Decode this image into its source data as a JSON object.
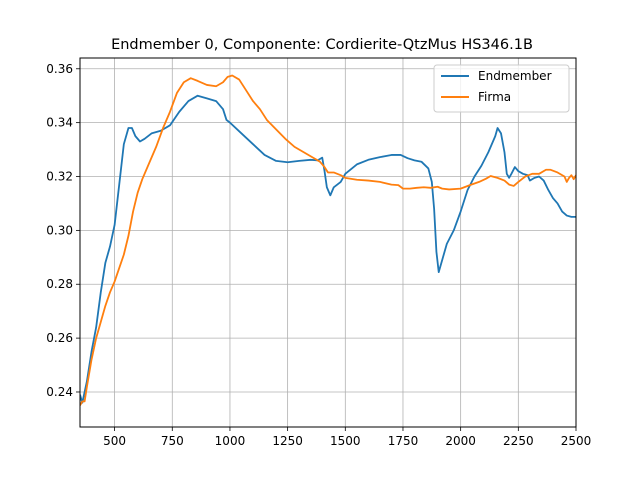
{
  "chart_data": {
    "type": "line",
    "title": "Endmember 0, Componente: Cordierite-QtzMus HS346.1B",
    "xlabel": "",
    "ylabel": "",
    "xlim": [
      350,
      2500
    ],
    "ylim": [
      0.227,
      0.364
    ],
    "grid": true,
    "legend_position": "top-right",
    "x_ticks": [
      500,
      750,
      1000,
      1250,
      1500,
      1750,
      2000,
      2250,
      2500
    ],
    "x_tick_labels": [
      "500",
      "750",
      "1000",
      "1250",
      "1500",
      "1750",
      "2000",
      "2250",
      "2500"
    ],
    "y_ticks": [
      0.24,
      0.26,
      0.28,
      0.3,
      0.32,
      0.34,
      0.36
    ],
    "y_tick_labels": [
      "0.24",
      "0.26",
      "0.28",
      "0.30",
      "0.32",
      "0.34",
      "0.36"
    ],
    "series": [
      {
        "name": "Endmember",
        "color": "#1f77b4",
        "points": [
          [
            350,
            0.239
          ],
          [
            360,
            0.236
          ],
          [
            380,
            0.244
          ],
          [
            400,
            0.255
          ],
          [
            420,
            0.264
          ],
          [
            440,
            0.277
          ],
          [
            460,
            0.288
          ],
          [
            480,
            0.294
          ],
          [
            500,
            0.302
          ],
          [
            520,
            0.317
          ],
          [
            540,
            0.332
          ],
          [
            560,
            0.338
          ],
          [
            575,
            0.338
          ],
          [
            590,
            0.335
          ],
          [
            610,
            0.333
          ],
          [
            630,
            0.334
          ],
          [
            660,
            0.336
          ],
          [
            700,
            0.337
          ],
          [
            740,
            0.339
          ],
          [
            780,
            0.344
          ],
          [
            820,
            0.348
          ],
          [
            860,
            0.35
          ],
          [
            900,
            0.349
          ],
          [
            940,
            0.348
          ],
          [
            970,
            0.345
          ],
          [
            985,
            0.341
          ],
          [
            1000,
            0.34
          ],
          [
            1050,
            0.336
          ],
          [
            1100,
            0.332
          ],
          [
            1150,
            0.328
          ],
          [
            1200,
            0.3258
          ],
          [
            1250,
            0.3253
          ],
          [
            1300,
            0.3258
          ],
          [
            1350,
            0.3262
          ],
          [
            1380,
            0.326
          ],
          [
            1400,
            0.327
          ],
          [
            1410,
            0.322
          ],
          [
            1420,
            0.316
          ],
          [
            1435,
            0.313
          ],
          [
            1450,
            0.316
          ],
          [
            1480,
            0.318
          ],
          [
            1500,
            0.321
          ],
          [
            1550,
            0.3245
          ],
          [
            1600,
            0.3262
          ],
          [
            1650,
            0.3272
          ],
          [
            1700,
            0.328
          ],
          [
            1740,
            0.328
          ],
          [
            1770,
            0.3268
          ],
          [
            1800,
            0.326
          ],
          [
            1830,
            0.3255
          ],
          [
            1860,
            0.323
          ],
          [
            1875,
            0.318
          ],
          [
            1885,
            0.308
          ],
          [
            1895,
            0.292
          ],
          [
            1905,
            0.2845
          ],
          [
            1920,
            0.289
          ],
          [
            1940,
            0.295
          ],
          [
            1970,
            0.3
          ],
          [
            2000,
            0.307
          ],
          [
            2030,
            0.315
          ],
          [
            2060,
            0.32
          ],
          [
            2090,
            0.324
          ],
          [
            2120,
            0.329
          ],
          [
            2150,
            0.335
          ],
          [
            2160,
            0.338
          ],
          [
            2175,
            0.336
          ],
          [
            2190,
            0.329
          ],
          [
            2200,
            0.321
          ],
          [
            2210,
            0.3195
          ],
          [
            2220,
            0.321
          ],
          [
            2235,
            0.3235
          ],
          [
            2250,
            0.322
          ],
          [
            2270,
            0.321
          ],
          [
            2290,
            0.3205
          ],
          [
            2300,
            0.3185
          ],
          [
            2320,
            0.3195
          ],
          [
            2340,
            0.32
          ],
          [
            2360,
            0.3185
          ],
          [
            2380,
            0.315
          ],
          [
            2400,
            0.312
          ],
          [
            2420,
            0.31
          ],
          [
            2440,
            0.307
          ],
          [
            2460,
            0.3055
          ],
          [
            2480,
            0.305
          ],
          [
            2500,
            0.305
          ]
        ]
      },
      {
        "name": "Firma",
        "color": "#ff7f0e",
        "points": [
          [
            350,
            0.235
          ],
          [
            360,
            0.2365
          ],
          [
            370,
            0.2365
          ],
          [
            380,
            0.242
          ],
          [
            400,
            0.252
          ],
          [
            420,
            0.26
          ],
          [
            440,
            0.266
          ],
          [
            460,
            0.272
          ],
          [
            480,
            0.277
          ],
          [
            500,
            0.281
          ],
          [
            520,
            0.286
          ],
          [
            540,
            0.291
          ],
          [
            560,
            0.298
          ],
          [
            580,
            0.307
          ],
          [
            600,
            0.314
          ],
          [
            620,
            0.319
          ],
          [
            650,
            0.325
          ],
          [
            680,
            0.331
          ],
          [
            710,
            0.338
          ],
          [
            740,
            0.344
          ],
          [
            770,
            0.351
          ],
          [
            800,
            0.355
          ],
          [
            830,
            0.3565
          ],
          [
            860,
            0.3555
          ],
          [
            900,
            0.354
          ],
          [
            940,
            0.3535
          ],
          [
            970,
            0.355
          ],
          [
            990,
            0.357
          ],
          [
            1010,
            0.3575
          ],
          [
            1040,
            0.356
          ],
          [
            1070,
            0.352
          ],
          [
            1100,
            0.348
          ],
          [
            1130,
            0.345
          ],
          [
            1160,
            0.341
          ],
          [
            1200,
            0.3375
          ],
          [
            1240,
            0.334
          ],
          [
            1280,
            0.331
          ],
          [
            1320,
            0.329
          ],
          [
            1360,
            0.327
          ],
          [
            1390,
            0.3255
          ],
          [
            1410,
            0.3235
          ],
          [
            1425,
            0.3215
          ],
          [
            1450,
            0.3215
          ],
          [
            1480,
            0.3205
          ],
          [
            1500,
            0.3195
          ],
          [
            1550,
            0.3188
          ],
          [
            1600,
            0.3185
          ],
          [
            1650,
            0.318
          ],
          [
            1700,
            0.317
          ],
          [
            1730,
            0.3168
          ],
          [
            1750,
            0.3155
          ],
          [
            1780,
            0.3155
          ],
          [
            1810,
            0.3158
          ],
          [
            1840,
            0.316
          ],
          [
            1870,
            0.3158
          ],
          [
            1900,
            0.3162
          ],
          [
            1920,
            0.3155
          ],
          [
            1950,
            0.3152
          ],
          [
            2000,
            0.3155
          ],
          [
            2040,
            0.3168
          ],
          [
            2080,
            0.318
          ],
          [
            2110,
            0.3192
          ],
          [
            2130,
            0.3202
          ],
          [
            2160,
            0.3195
          ],
          [
            2190,
            0.3185
          ],
          [
            2210,
            0.317
          ],
          [
            2230,
            0.3165
          ],
          [
            2250,
            0.318
          ],
          [
            2280,
            0.32
          ],
          [
            2310,
            0.321
          ],
          [
            2340,
            0.321
          ],
          [
            2370,
            0.3225
          ],
          [
            2390,
            0.3225
          ],
          [
            2420,
            0.3215
          ],
          [
            2450,
            0.32
          ],
          [
            2460,
            0.318
          ],
          [
            2470,
            0.3195
          ],
          [
            2480,
            0.3205
          ],
          [
            2490,
            0.319
          ],
          [
            2500,
            0.3205
          ]
        ]
      }
    ]
  }
}
